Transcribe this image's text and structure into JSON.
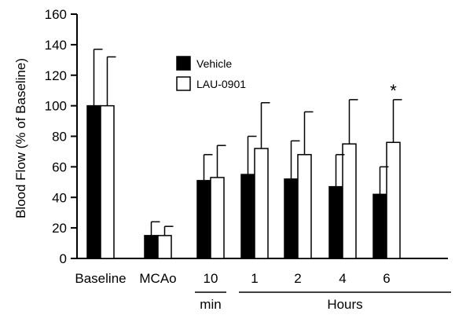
{
  "chart_data": {
    "type": "bar",
    "ylabel": "Blood Flow (% of Baseline)",
    "ylim": [
      0,
      160
    ],
    "yticks": [
      0,
      20,
      40,
      60,
      80,
      100,
      120,
      140,
      160
    ],
    "categories": [
      "Baseline",
      "MCAo",
      "10",
      "1",
      "2",
      "4",
      "6"
    ],
    "category_groups": [
      {
        "label": "min",
        "from": 2,
        "to": 2
      },
      {
        "label": "Hours",
        "from": 3,
        "to": 6
      }
    ],
    "series": [
      {
        "name": "Vehicle",
        "color": "#000000",
        "values": [
          100,
          15,
          51,
          55,
          52,
          47,
          42
        ],
        "error_upper": [
          137,
          24,
          68,
          80,
          77,
          68,
          60
        ]
      },
      {
        "name": "LAU-0901",
        "color": "#ffffff",
        "values": [
          100,
          15,
          53,
          72,
          68,
          75,
          76
        ],
        "error_upper": [
          132,
          21,
          74,
          102,
          96,
          104,
          104
        ]
      }
    ],
    "annotations": [
      {
        "text": "*",
        "category": "6",
        "series": "LAU-0901"
      }
    ],
    "legend_position": "top-center",
    "grid": false
  }
}
